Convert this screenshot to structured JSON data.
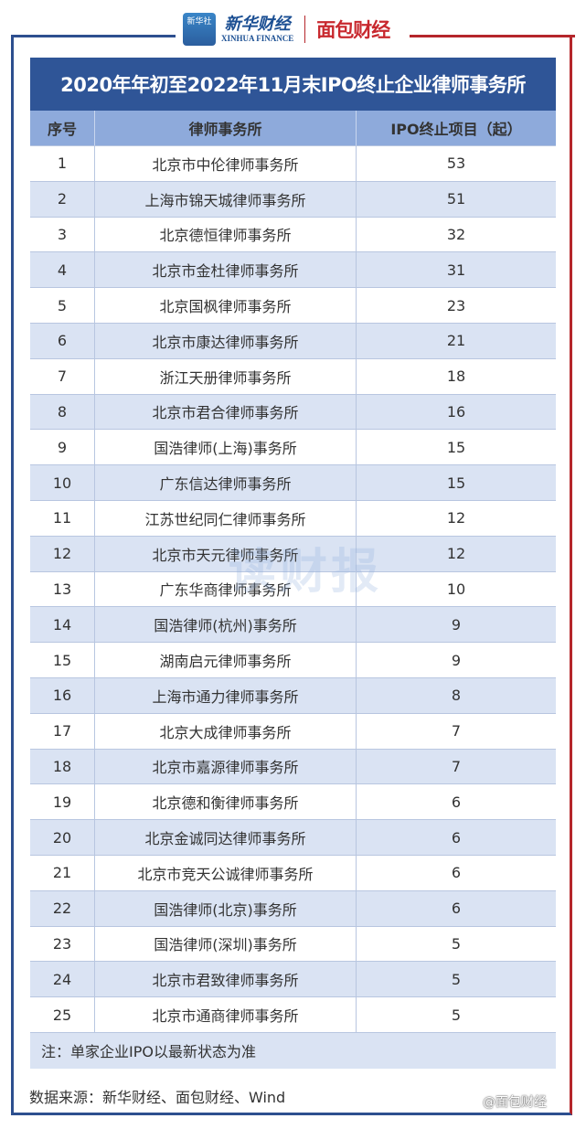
{
  "header": {
    "logo_xinhua_icon": "新华社",
    "logo_xinhua_cn": "新华财经",
    "logo_xinhua_en": "XINHUA FINANCE",
    "logo_mianbao": "面包财经"
  },
  "colors": {
    "title_bg": "#2f5597",
    "header_bg": "#8eaadb",
    "stripe": "#dae3f3",
    "frame_left": "#2d4f8f",
    "frame_right": "#b5262b"
  },
  "table": {
    "title": "2020年年初至2022年11月末IPO终止企业律师事务所",
    "columns": [
      "序号",
      "律师事务所",
      "IPO终止项目（起）"
    ],
    "rows": [
      [
        "1",
        "北京市中伦律师事务所",
        "53"
      ],
      [
        "2",
        "上海市锦天城律师事务所",
        "51"
      ],
      [
        "3",
        "北京德恒律师事务所",
        "32"
      ],
      [
        "4",
        "北京市金杜律师事务所",
        "31"
      ],
      [
        "5",
        "北京国枫律师事务所",
        "23"
      ],
      [
        "6",
        "北京市康达律师事务所",
        "21"
      ],
      [
        "7",
        "浙江天册律师事务所",
        "18"
      ],
      [
        "8",
        "北京市君合律师事务所",
        "16"
      ],
      [
        "9",
        "国浩律师(上海)事务所",
        "15"
      ],
      [
        "10",
        "广东信达律师事务所",
        "15"
      ],
      [
        "11",
        "江苏世纪同仁律师事务所",
        "12"
      ],
      [
        "12",
        "北京市天元律师事务所",
        "12"
      ],
      [
        "13",
        "广东华商律师事务所",
        "10"
      ],
      [
        "14",
        "国浩律师(杭州)事务所",
        "9"
      ],
      [
        "15",
        "湖南启元律师事务所",
        "9"
      ],
      [
        "16",
        "上海市通力律师事务所",
        "8"
      ],
      [
        "17",
        "北京大成律师事务所",
        "7"
      ],
      [
        "18",
        "北京市嘉源律师事务所",
        "7"
      ],
      [
        "19",
        "北京德和衡律师事务所",
        "6"
      ],
      [
        "20",
        "北京金诚同达律师事务所",
        "6"
      ],
      [
        "21",
        "北京市竞天公诚律师事务所",
        "6"
      ],
      [
        "22",
        "国浩律师(北京)事务所",
        "6"
      ],
      [
        "23",
        "国浩律师(深圳)事务所",
        "5"
      ],
      [
        "24",
        "北京市君致律师事务所",
        "5"
      ],
      [
        "25",
        "北京市通商律师事务所",
        "5"
      ]
    ],
    "note": "注：单家企业IPO以最新状态为准"
  },
  "center_watermark": "读财报",
  "source": "数据来源：新华财经、面包财经、Wind",
  "watermark": "@面包财经"
}
